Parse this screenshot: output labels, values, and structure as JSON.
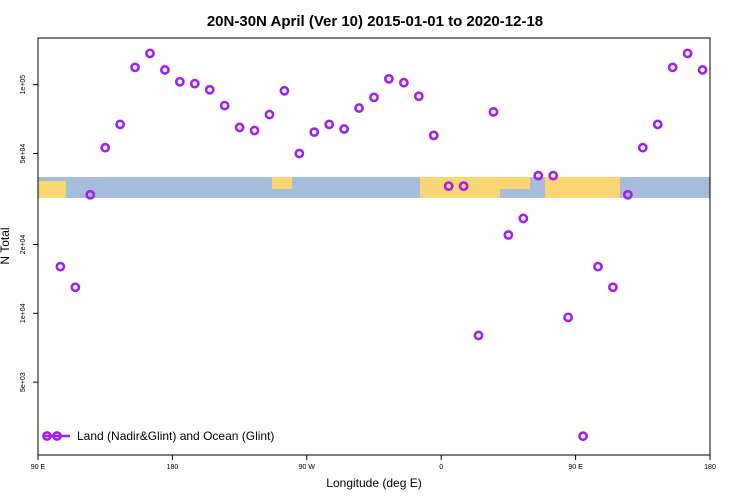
{
  "chart_data": {
    "type": "scatter",
    "title": "20N-30N April (Ver 10)   2015-01-01 to 2020-12-18",
    "x_label": "Longitude (deg E)",
    "y_label": "N Total",
    "xlim": [
      90,
      540
    ],
    "xticks": [
      {
        "value": 90,
        "label": "90 E"
      },
      {
        "value": 180,
        "label": "180"
      },
      {
        "value": 270,
        "label": "90 W"
      },
      {
        "value": 360,
        "label": "0"
      },
      {
        "value": 450,
        "label": "90 E"
      },
      {
        "value": 540,
        "label": "180"
      }
    ],
    "ylim": [
      2400,
      160000
    ],
    "log_y": true,
    "yticks": [
      {
        "value": 5000,
        "label": "5e+03"
      },
      {
        "value": 10000,
        "label": "1e+04"
      },
      {
        "value": 20000,
        "label": "2e+04"
      },
      {
        "value": 50000,
        "label": "5e+04"
      },
      {
        "value": 100000,
        "label": "1e+05"
      }
    ],
    "legend": "bottomleft",
    "series": [
      {
        "name": "Land (Nadir&Glint) and Ocean (Glint)",
        "color": "#a020f0",
        "x": [
          105,
          115,
          125,
          135,
          145,
          155,
          165,
          175,
          185,
          195,
          205,
          215,
          225,
          235,
          245,
          255,
          265,
          275,
          285,
          295,
          305,
          315,
          325,
          335,
          345,
          355,
          365,
          375,
          385,
          395,
          405,
          415,
          425,
          435,
          445,
          455,
          465,
          475,
          485,
          495,
          505,
          515,
          525,
          535
        ],
        "values": [
          16000,
          13000,
          33000,
          53000,
          67000,
          119000,
          137000,
          116000,
          103000,
          101000,
          95000,
          81000,
          65000,
          63000,
          74000,
          94000,
          50000,
          62000,
          67000,
          64000,
          79000,
          88000,
          106000,
          102000,
          89000,
          60000,
          36000,
          36000,
          8000,
          76000,
          22000,
          26000,
          40000,
          40000,
          9600,
          2900,
          16000,
          13000,
          33000,
          53000,
          67000,
          119000,
          137000,
          116000
        ]
      }
    ]
  }
}
